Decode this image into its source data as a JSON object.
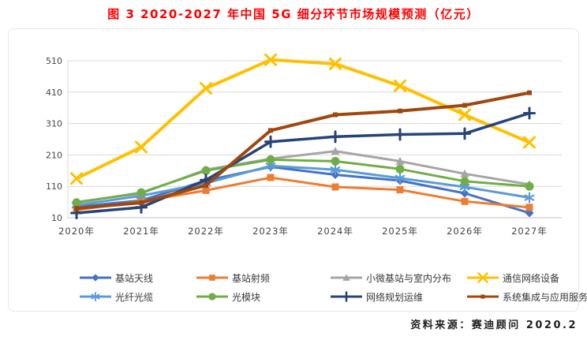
{
  "title": "图 3 2020-2027 年中国 5G 细分环节市场规模预测（亿元）",
  "source_note": "资料来源：赛迪顾问  2020.2",
  "chart_data": {
    "type": "line",
    "title": "2020-2027 年中国 5G 细分环节市场规模预测（亿元）",
    "xlabel": "",
    "ylabel": "",
    "grid": true,
    "legend_position": "bottom",
    "categories": [
      "2020年",
      "2021年",
      "2022年",
      "2023年",
      "2024年",
      "2025年",
      "2026年",
      "2027年"
    ],
    "y_axis": {
      "min": 10,
      "max": 510,
      "ticks": [
        10,
        110,
        210,
        310,
        410,
        510
      ]
    },
    "series": [
      {
        "name": "基站天线",
        "color": "#4472C4",
        "marker": "diamond",
        "line_width": 3,
        "values": [
          45,
          65,
          128,
          172,
          147,
          128,
          88,
          25
        ]
      },
      {
        "name": "基站射频",
        "color": "#ED7D31",
        "marker": "square",
        "line_width": 3,
        "values": [
          35,
          62,
          97,
          138,
          108,
          99,
          62,
          43
        ]
      },
      {
        "name": "小微基站与室内分布",
        "color": "#A5A5A5",
        "marker": "triangle",
        "line_width": 3,
        "values": [
          60,
          88,
          163,
          198,
          222,
          190,
          150,
          116
        ]
      },
      {
        "name": "通信网络设备",
        "color": "#FFC000",
        "marker": "x",
        "line_width": 4,
        "values": [
          135,
          235,
          422,
          513,
          500,
          430,
          338,
          250
        ]
      },
      {
        "name": "光纤光缆",
        "color": "#5B9BD5",
        "marker": "asterisk",
        "line_width": 3,
        "values": [
          50,
          80,
          120,
          175,
          163,
          136,
          108,
          74
        ]
      },
      {
        "name": "光模块",
        "color": "#70AD47",
        "marker": "circle",
        "line_width": 3,
        "values": [
          58,
          90,
          160,
          195,
          190,
          165,
          126,
          110
        ]
      },
      {
        "name": "网络规划运维",
        "color": "#264478",
        "marker": "plus",
        "line_width": 3.5,
        "values": [
          25,
          43,
          130,
          252,
          268,
          275,
          278,
          343
        ]
      },
      {
        "name": "系统集成与应用服务",
        "color": "#9E480E",
        "marker": "square-small",
        "line_width": 4,
        "values": [
          40,
          58,
          113,
          288,
          338,
          350,
          368,
          408
        ]
      }
    ]
  }
}
